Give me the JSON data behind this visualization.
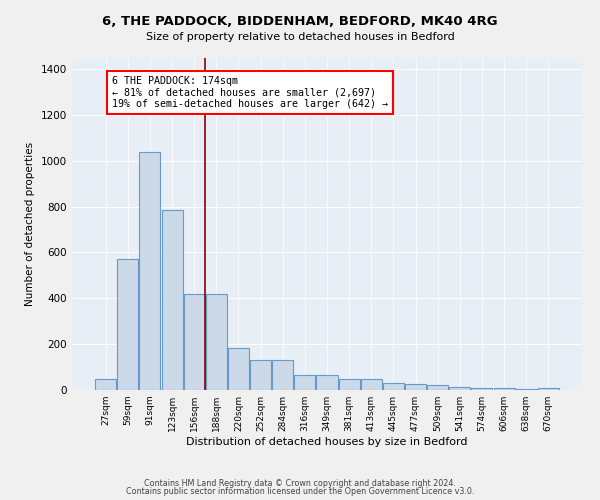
{
  "title": "6, THE PADDOCK, BIDDENHAM, BEDFORD, MK40 4RG",
  "subtitle": "Size of property relative to detached houses in Bedford",
  "xlabel": "Distribution of detached houses by size in Bedford",
  "ylabel": "Number of detached properties",
  "bar_color": "#ccd9e8",
  "bar_edge_color": "#6699cc",
  "background_color": "#e8eef5",
  "fig_background": "#f0f0f0",
  "categories": [
    "27sqm",
    "59sqm",
    "91sqm",
    "123sqm",
    "156sqm",
    "188sqm",
    "220sqm",
    "252sqm",
    "284sqm",
    "316sqm",
    "349sqm",
    "381sqm",
    "413sqm",
    "445sqm",
    "477sqm",
    "509sqm",
    "541sqm",
    "574sqm",
    "606sqm",
    "638sqm",
    "670sqm"
  ],
  "values": [
    50,
    570,
    1040,
    785,
    420,
    420,
    185,
    130,
    130,
    65,
    65,
    50,
    50,
    30,
    25,
    20,
    15,
    10,
    10,
    3,
    10
  ],
  "annotation_text": "6 THE PADDOCK: 174sqm\n← 81% of detached houses are smaller (2,697)\n19% of semi-detached houses are larger (642) →",
  "ylim": [
    0,
    1450
  ],
  "yticks": [
    0,
    200,
    400,
    600,
    800,
    1000,
    1200,
    1400
  ],
  "footnote1": "Contains HM Land Registry data © Crown copyright and database right 2024.",
  "footnote2": "Contains public sector information licensed under the Open Government Licence v3.0."
}
